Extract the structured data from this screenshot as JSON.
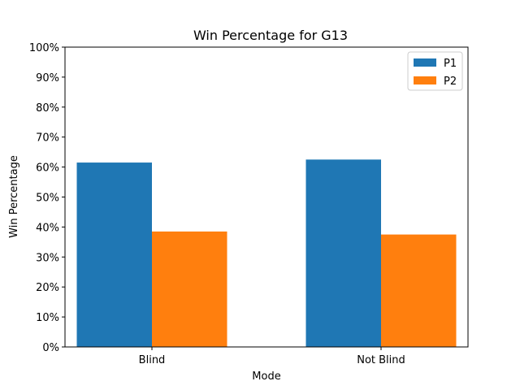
{
  "chart_data": {
    "type": "bar",
    "title": "Win Percentage for G13",
    "xlabel": "Mode",
    "ylabel": "Win Percentage",
    "categories": [
      "Blind",
      "Not Blind"
    ],
    "series": [
      {
        "name": "P1",
        "values": [
          61.5,
          62.5
        ],
        "color": "#1f77b4"
      },
      {
        "name": "P2",
        "values": [
          38.5,
          37.5
        ],
        "color": "#ff7f0e"
      }
    ],
    "ylim": [
      0,
      100
    ],
    "yticks": [
      "0%",
      "10%",
      "20%",
      "30%",
      "40%",
      "50%",
      "60%",
      "70%",
      "80%",
      "90%",
      "100%"
    ],
    "legend_position": "top-right",
    "grid": false
  }
}
